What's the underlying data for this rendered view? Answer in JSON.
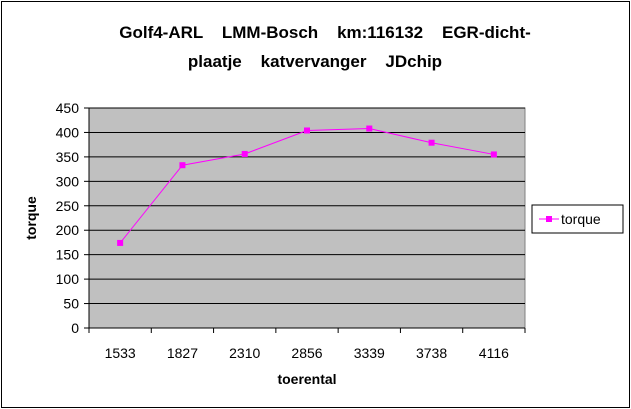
{
  "chart_data": {
    "type": "line",
    "title_lines": [
      "Golf4-ARL    LMM-Bosch    km:116132    EGR-dicht-",
      "plaatje    katvervanger    JDchip"
    ],
    "xlabel": "toerental",
    "ylabel": "torque",
    "categories": [
      "1533",
      "1827",
      "2310",
      "2856",
      "3339",
      "3738",
      "4116"
    ],
    "series": [
      {
        "name": "torque",
        "values": [
          174,
          333,
          356,
          404,
          408,
          379,
          355
        ]
      }
    ],
    "ylim": [
      0,
      450
    ],
    "yticks": [
      0,
      50,
      100,
      150,
      200,
      250,
      300,
      350,
      400,
      450
    ],
    "grid": true,
    "legend_position": "right",
    "colors": {
      "plot_background": "#c0c0c0",
      "series": "#ff00ff",
      "gridline": "#000000",
      "border": "#000000"
    }
  }
}
